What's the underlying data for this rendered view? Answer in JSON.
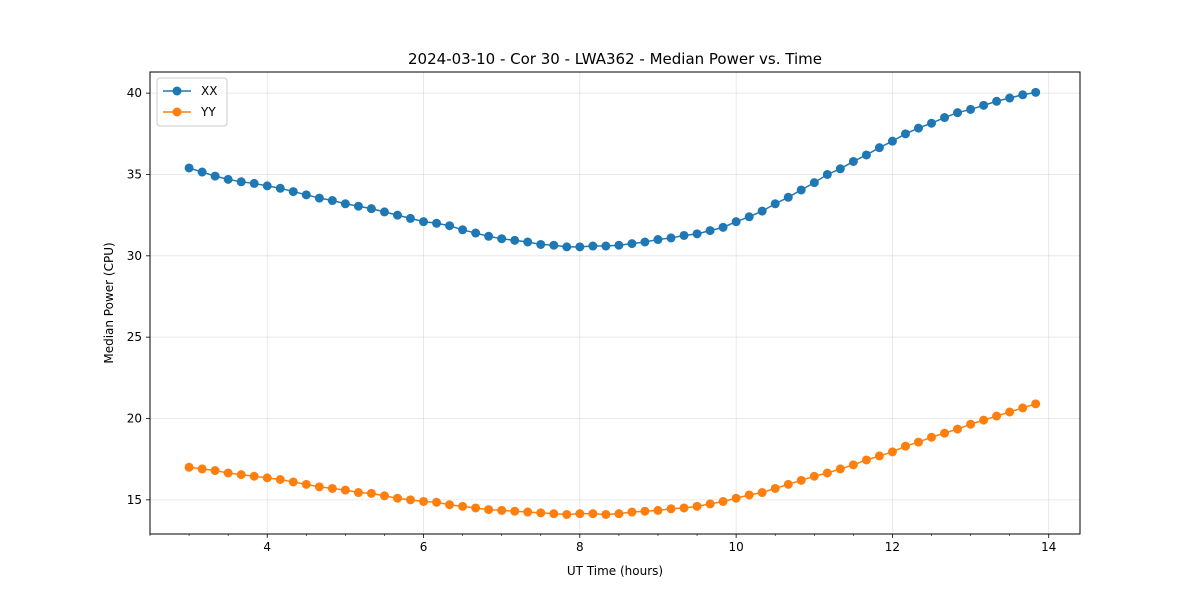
{
  "chart_data": {
    "type": "line",
    "title": "2024-03-10 - Cor 30 - LWA362 - Median Power vs. Time",
    "xlabel": "UT Time (hours)",
    "ylabel": "Median Power (CPU)",
    "xlim": [
      2.5,
      14.4
    ],
    "ylim": [
      12.9,
      41.3
    ],
    "xticks": [
      4,
      6,
      8,
      10,
      12,
      14
    ],
    "xtick_labels": [
      "4",
      "6",
      "8",
      "10",
      "12",
      "14"
    ],
    "x_minor_step": 0.5,
    "yticks": [
      15,
      20,
      25,
      30,
      35,
      40
    ],
    "ytick_labels": [
      "15",
      "20",
      "25",
      "30",
      "35",
      "40"
    ],
    "grid": true,
    "legend_position": "upper-left",
    "x": [
      3.0,
      3.167,
      3.333,
      3.5,
      3.667,
      3.833,
      4.0,
      4.167,
      4.333,
      4.5,
      4.667,
      4.833,
      5.0,
      5.167,
      5.333,
      5.5,
      5.667,
      5.833,
      6.0,
      6.167,
      6.333,
      6.5,
      6.667,
      6.833,
      7.0,
      7.167,
      7.333,
      7.5,
      7.667,
      7.833,
      8.0,
      8.167,
      8.333,
      8.5,
      8.667,
      8.833,
      9.0,
      9.167,
      9.333,
      9.5,
      9.667,
      9.833,
      10.0,
      10.167,
      10.333,
      10.5,
      10.667,
      10.833,
      11.0,
      11.167,
      11.333,
      11.5,
      11.667,
      11.833,
      12.0,
      12.167,
      12.333,
      12.5,
      12.667,
      12.833,
      13.0,
      13.167,
      13.333,
      13.5,
      13.667,
      13.833
    ],
    "series": [
      {
        "name": "XX",
        "color": "#1f77b4",
        "values": [
          35.4,
          35.15,
          34.9,
          34.7,
          34.55,
          34.45,
          34.3,
          34.15,
          33.95,
          33.75,
          33.55,
          33.4,
          33.2,
          33.05,
          32.9,
          32.7,
          32.5,
          32.3,
          32.1,
          32.0,
          31.85,
          31.6,
          31.4,
          31.2,
          31.05,
          30.95,
          30.85,
          30.7,
          30.65,
          30.55,
          30.55,
          30.6,
          30.6,
          30.65,
          30.75,
          30.85,
          31.0,
          31.1,
          31.25,
          31.35,
          31.55,
          31.75,
          32.1,
          32.4,
          32.75,
          33.2,
          33.6,
          34.05,
          34.5,
          35.0,
          35.35,
          35.8,
          36.2,
          36.65,
          37.05,
          37.5,
          37.85,
          38.15,
          38.5,
          38.8,
          39.0,
          39.25,
          39.5,
          39.7,
          39.9,
          40.05
        ]
      },
      {
        "name": "YY",
        "color": "#ff7f0e",
        "values": [
          17.0,
          16.9,
          16.8,
          16.65,
          16.55,
          16.45,
          16.35,
          16.25,
          16.1,
          15.95,
          15.8,
          15.7,
          15.6,
          15.45,
          15.4,
          15.25,
          15.1,
          15.0,
          14.9,
          14.85,
          14.7,
          14.6,
          14.5,
          14.4,
          14.35,
          14.3,
          14.25,
          14.2,
          14.15,
          14.1,
          14.15,
          14.15,
          14.1,
          14.15,
          14.25,
          14.3,
          14.35,
          14.45,
          14.5,
          14.6,
          14.75,
          14.9,
          15.1,
          15.3,
          15.45,
          15.7,
          15.95,
          16.2,
          16.45,
          16.65,
          16.9,
          17.15,
          17.45,
          17.7,
          17.95,
          18.3,
          18.55,
          18.85,
          19.1,
          19.35,
          19.65,
          19.9,
          20.15,
          20.4,
          20.65,
          20.9
        ]
      }
    ]
  }
}
